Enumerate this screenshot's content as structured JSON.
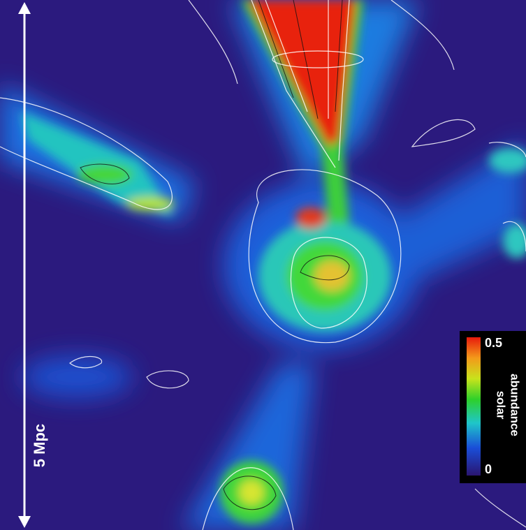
{
  "scale_bar": {
    "label": "5 Mpc"
  },
  "colorbar": {
    "label_lines": [
      "solar",
      "abundance"
    ],
    "ticks": [
      0.5,
      0
    ]
  }
}
